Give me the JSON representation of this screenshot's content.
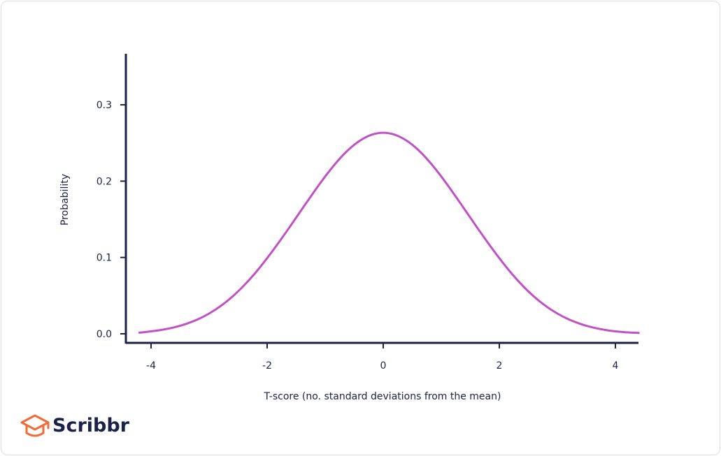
{
  "chart_data": {
    "type": "line",
    "title": "",
    "xlabel": "T-score (no. standard deviations from the mean)",
    "ylabel": "Probability",
    "xlim": [
      -4.4,
      4.4
    ],
    "ylim": [
      -0.012,
      0.37
    ],
    "xticks": [
      {
        "value": -4,
        "label": "-4"
      },
      {
        "value": -2,
        "label": "-2"
      },
      {
        "value": 0,
        "label": "0"
      },
      {
        "value": 2,
        "label": "2"
      },
      {
        "value": 4,
        "label": "4"
      }
    ],
    "yticks": [
      {
        "value": 0.0,
        "label": "0.0"
      },
      {
        "value": 0.1,
        "label": "0.1"
      },
      {
        "value": 0.2,
        "label": "0.2"
      },
      {
        "value": 0.3,
        "label": "0.3"
      }
    ],
    "grid": false,
    "series": [
      {
        "color": "#c052c5",
        "x": [
          -4.2,
          -4.0,
          -3.8,
          -3.6,
          -3.4,
          -3.2,
          -3.0,
          -2.8,
          -2.6,
          -2.4,
          -2.2,
          -2.0,
          -1.8,
          -1.6,
          -1.4,
          -1.2,
          -1.0,
          -0.8,
          -0.6,
          -0.4,
          -0.2,
          0.0,
          0.2,
          0.4,
          0.6,
          0.8,
          1.0,
          1.2,
          1.4,
          1.6,
          1.8,
          2.0,
          2.2,
          2.4,
          2.6,
          2.8,
          3.0,
          3.2,
          3.4,
          3.6,
          3.8,
          4.0,
          4.2,
          4.4
        ],
        "y": [
          0.0015,
          0.0032,
          0.0054,
          0.0085,
          0.0129,
          0.0188,
          0.0265,
          0.0364,
          0.0486,
          0.0632,
          0.0801,
          0.0991,
          0.1196,
          0.1412,
          0.1633,
          0.1852,
          0.2061,
          0.2251,
          0.2411,
          0.2532,
          0.2608,
          0.2634,
          0.2608,
          0.2532,
          0.2411,
          0.2251,
          0.2061,
          0.1852,
          0.1633,
          0.1412,
          0.1196,
          0.0991,
          0.0801,
          0.0632,
          0.0486,
          0.0364,
          0.0265,
          0.0188,
          0.0129,
          0.0085,
          0.0054,
          0.0032,
          0.0019,
          0.0011
        ]
      }
    ]
  },
  "brand": {
    "name": "Scribbr",
    "color": "#f26b36"
  }
}
